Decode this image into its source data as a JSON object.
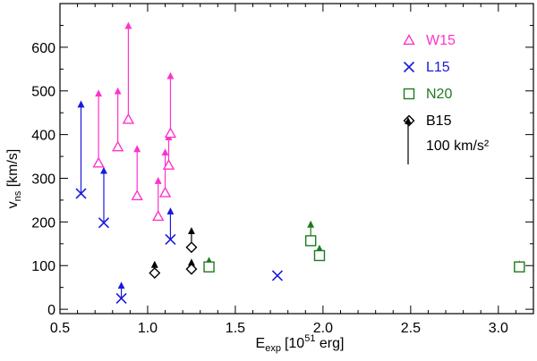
{
  "chart_data": {
    "type": "scatter",
    "title": "",
    "xlabel": {
      "main": "E",
      "sub": "exp",
      "bracket_open": "[10",
      "sup": "51",
      "bracket_close": " erg]"
    },
    "ylabel": {
      "main": "v",
      "sub": "ns",
      "rest": " [km/s]"
    },
    "xlim": [
      0.5,
      3.2
    ],
    "ylim": [
      -10,
      700
    ],
    "xticks": [
      0.5,
      1.0,
      1.5,
      2.0,
      2.5,
      3.0
    ],
    "xtick_labels": [
      "0.5",
      "1.0",
      "1.5",
      "2.0",
      "2.5",
      "3.0"
    ],
    "yticks": [
      0,
      100,
      200,
      300,
      400,
      500,
      600
    ],
    "ytick_labels": [
      "0",
      "100",
      "200",
      "300",
      "400",
      "500",
      "600"
    ],
    "legend_position": "top-right",
    "scale_arrow": {
      "label": "100 km/s²",
      "length": 100,
      "color": "#000000"
    },
    "series": [
      {
        "name": "W15",
        "marker": "triangle",
        "color": "#ff33cc",
        "points": [
          {
            "x": 0.72,
            "y": 335,
            "y_arrow": 495
          },
          {
            "x": 0.83,
            "y": 372,
            "y_arrow": 500
          },
          {
            "x": 0.89,
            "y": 435,
            "y_arrow": 650
          },
          {
            "x": 0.94,
            "y": 260,
            "y_arrow": 368
          },
          {
            "x": 1.06,
            "y": 213,
            "y_arrow": 295
          },
          {
            "x": 1.1,
            "y": 267,
            "y_arrow": 360
          },
          {
            "x": 1.12,
            "y": 330,
            "y_arrow": 395
          },
          {
            "x": 1.13,
            "y": 403,
            "y_arrow": 535
          }
        ]
      },
      {
        "name": "L15",
        "marker": "x",
        "color": "#1a1adb",
        "points": [
          {
            "x": 0.62,
            "y": 265,
            "y_arrow": 470
          },
          {
            "x": 0.75,
            "y": 198,
            "y_arrow": 318
          },
          {
            "x": 0.85,
            "y": 25,
            "y_arrow": 55
          },
          {
            "x": 1.13,
            "y": 160,
            "y_arrow": 225
          },
          {
            "x": 1.74,
            "y": 77,
            "y_arrow": 77
          }
        ]
      },
      {
        "name": "N20",
        "marker": "square",
        "color": "#1f7a1f",
        "points": [
          {
            "x": 1.35,
            "y": 97,
            "y_arrow": 112
          },
          {
            "x": 1.93,
            "y": 157,
            "y_arrow": 195
          },
          {
            "x": 1.98,
            "y": 123,
            "y_arrow": 140
          },
          {
            "x": 3.12,
            "y": 97,
            "y_arrow": 104
          }
        ]
      },
      {
        "name": "B15",
        "marker": "diamond",
        "color": "#000000",
        "points": [
          {
            "x": 1.04,
            "y": 83,
            "y_arrow": 103
          },
          {
            "x": 1.25,
            "y": 92,
            "y_arrow": 108
          },
          {
            "x": 1.25,
            "y": 142,
            "y_arrow": 180
          }
        ]
      }
    ]
  }
}
